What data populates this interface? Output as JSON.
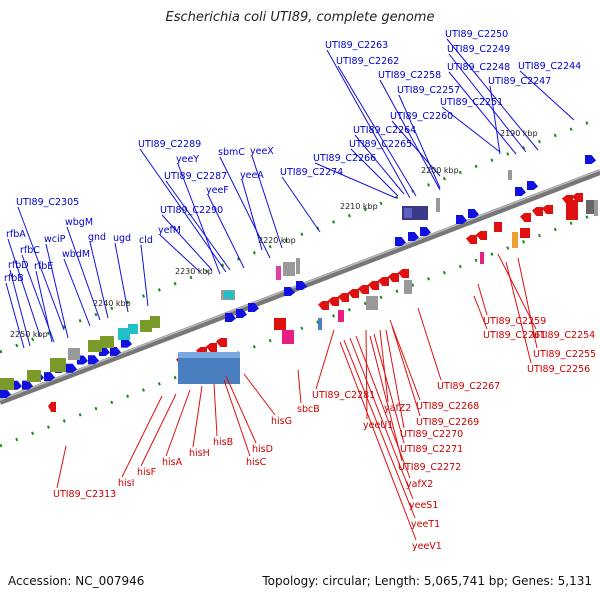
{
  "header": {
    "title": "Escherichia coli UTI89, complete genome"
  },
  "footer": {
    "accession": "Accession: NC_007946",
    "summary": "Topology: circular; Length: 5,065,741 bp; Genes: 5,131"
  },
  "colors": {
    "forward": "#1010e0",
    "reverse": "#e01010",
    "forward_label": "#0000cc",
    "reverse_label": "#cc0000",
    "backbone": "#888888",
    "tick": "#1a8a1a"
  },
  "ticks": [
    "2190 kbp",
    "2200 kbp",
    "2210 kbp",
    "2220 kbp",
    "2230 kbp",
    "2240 kbp",
    "2250 kbp"
  ],
  "forward_labels": [
    "UTI89_C2250",
    "UTI89_C2249",
    "UTI89_C2248",
    "UTI89_C2247",
    "UTI89_C2244",
    "UTI89_C2263",
    "UTI89_C2262",
    "UTI89_C2258",
    "UTI89_C2257",
    "UTI89_C2251",
    "UTI89_C2260",
    "UTI89_C2264",
    "UTI89_C2265",
    "UTI89_C2266",
    "UTI89_C2274",
    "UTI89_C2289",
    "yeeY",
    "UTI89_C2287",
    "yeeF",
    "sbmC",
    "yeeX",
    "yeeA",
    "UTI89_C2290",
    "yefM",
    "UTI89_C2305",
    "wbgM",
    "rfbA",
    "rfbC",
    "wciP",
    "gnd",
    "ugd",
    "cld",
    "rfbD",
    "rfbE",
    "wbdM",
    "rfbB"
  ],
  "reverse_labels": [
    "UTI89_C2259",
    "UTI89_C2254",
    "UTI89_C2261",
    "UTI89_C2255",
    "UTI89_C2256",
    "UTI89_C2267",
    "UTI89_C2281",
    "yafZ2",
    "UTI89_C2268",
    "yeeU1",
    "UTI89_C2269",
    "UTI89_C2270",
    "UTI89_C2271",
    "UTI89_C2272",
    "yafX2",
    "yeeS1",
    "yeeT1",
    "yeeV1",
    "sbcB",
    "hisG",
    "hisD",
    "hisC",
    "hisB",
    "hisH",
    "hisA",
    "hisF",
    "hisI",
    "UTI89_C2313"
  ]
}
